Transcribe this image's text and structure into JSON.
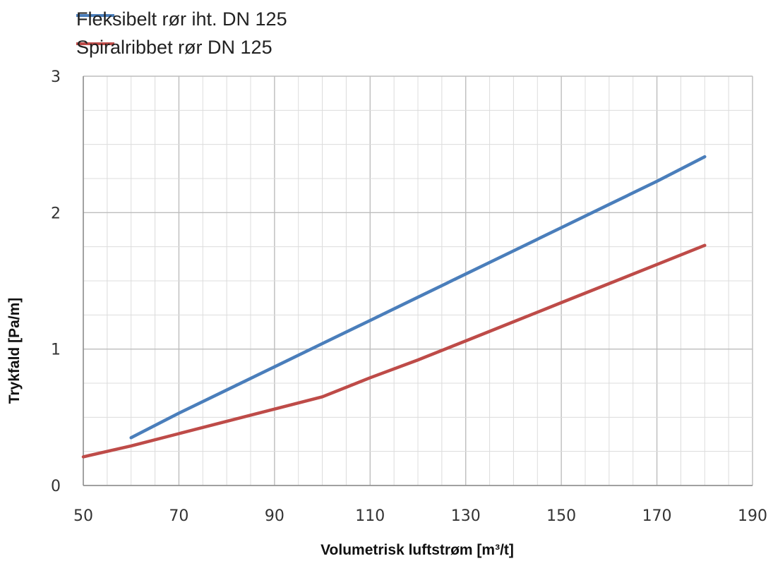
{
  "chart_data": {
    "type": "line",
    "xlabel": "Volumetrisk luftstrøm [m³/t]",
    "ylabel": "Trykfald [Pa/m]",
    "xlim": [
      50,
      190
    ],
    "ylim": [
      0,
      3
    ],
    "x_ticks": [
      "50",
      "70",
      "90",
      "110",
      "130",
      "150",
      "170",
      "190"
    ],
    "y_ticks": [
      "0",
      "1",
      "2",
      "3"
    ],
    "grid": true,
    "legend_position": "top-left",
    "series": [
      {
        "name": "Fleksibelt rør iht. DN 125",
        "color": "#4a7ebb",
        "x": [
          60,
          70,
          80,
          90,
          100,
          110,
          120,
          130,
          140,
          150,
          160,
          170,
          180
        ],
        "y": [
          0.35,
          0.53,
          0.7,
          0.87,
          1.04,
          1.21,
          1.38,
          1.55,
          1.72,
          1.89,
          2.06,
          2.23,
          2.41
        ]
      },
      {
        "name": "Spiralribbet rør DN 125",
        "color": "#be4b48",
        "x": [
          50,
          60,
          70,
          80,
          90,
          100,
          110,
          120,
          130,
          140,
          150,
          160,
          170,
          180
        ],
        "y": [
          0.21,
          0.29,
          0.38,
          0.47,
          0.56,
          0.65,
          0.79,
          0.92,
          1.06,
          1.2,
          1.34,
          1.48,
          1.62,
          1.76
        ]
      }
    ]
  }
}
